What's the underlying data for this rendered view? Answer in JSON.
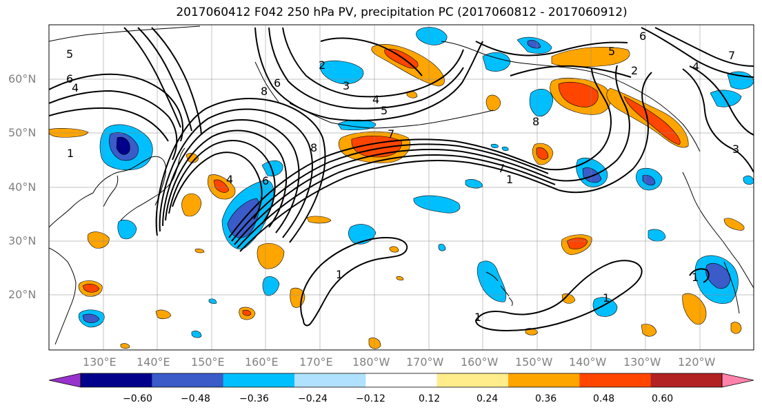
{
  "title": "2017060412 F042 250 hPa PV, precipitation PC (2017060812 - 2017060912)",
  "lat_labels": [
    "60°N",
    "50°N",
    "40°N",
    "30°N",
    "20°N"
  ],
  "lon_labels": [
    "130°E",
    "140°E",
    "150°E",
    "160°E",
    "170°E",
    "180°W",
    "170°W",
    "160°W",
    "150°W",
    "140°W",
    "130°W",
    "120°W"
  ],
  "colorbar": {
    "colors": [
      "#9932CC",
      "#00008B",
      "#3A5BC8",
      "#00BFFF",
      "#B0E2FF",
      "#FFFFFF",
      "#FFEC8B",
      "#FFA500",
      "#FF4500",
      "#B22222",
      "#FF82AB"
    ],
    "tick_labels": [
      "−0.60",
      "−0.48",
      "−0.36",
      "−0.24",
      "−0.12",
      "0.12",
      "0.24",
      "0.36",
      "0.48",
      "0.60"
    ]
  },
  "contour_labels": [
    "5",
    "6",
    "4",
    "2",
    "3",
    "4",
    "5",
    "6",
    "8",
    "7",
    "8",
    "1",
    "1",
    "7",
    "6",
    "4",
    "2",
    "5",
    "6",
    "8",
    "1",
    "1",
    "1",
    "1",
    "3",
    "7",
    "4"
  ]
}
